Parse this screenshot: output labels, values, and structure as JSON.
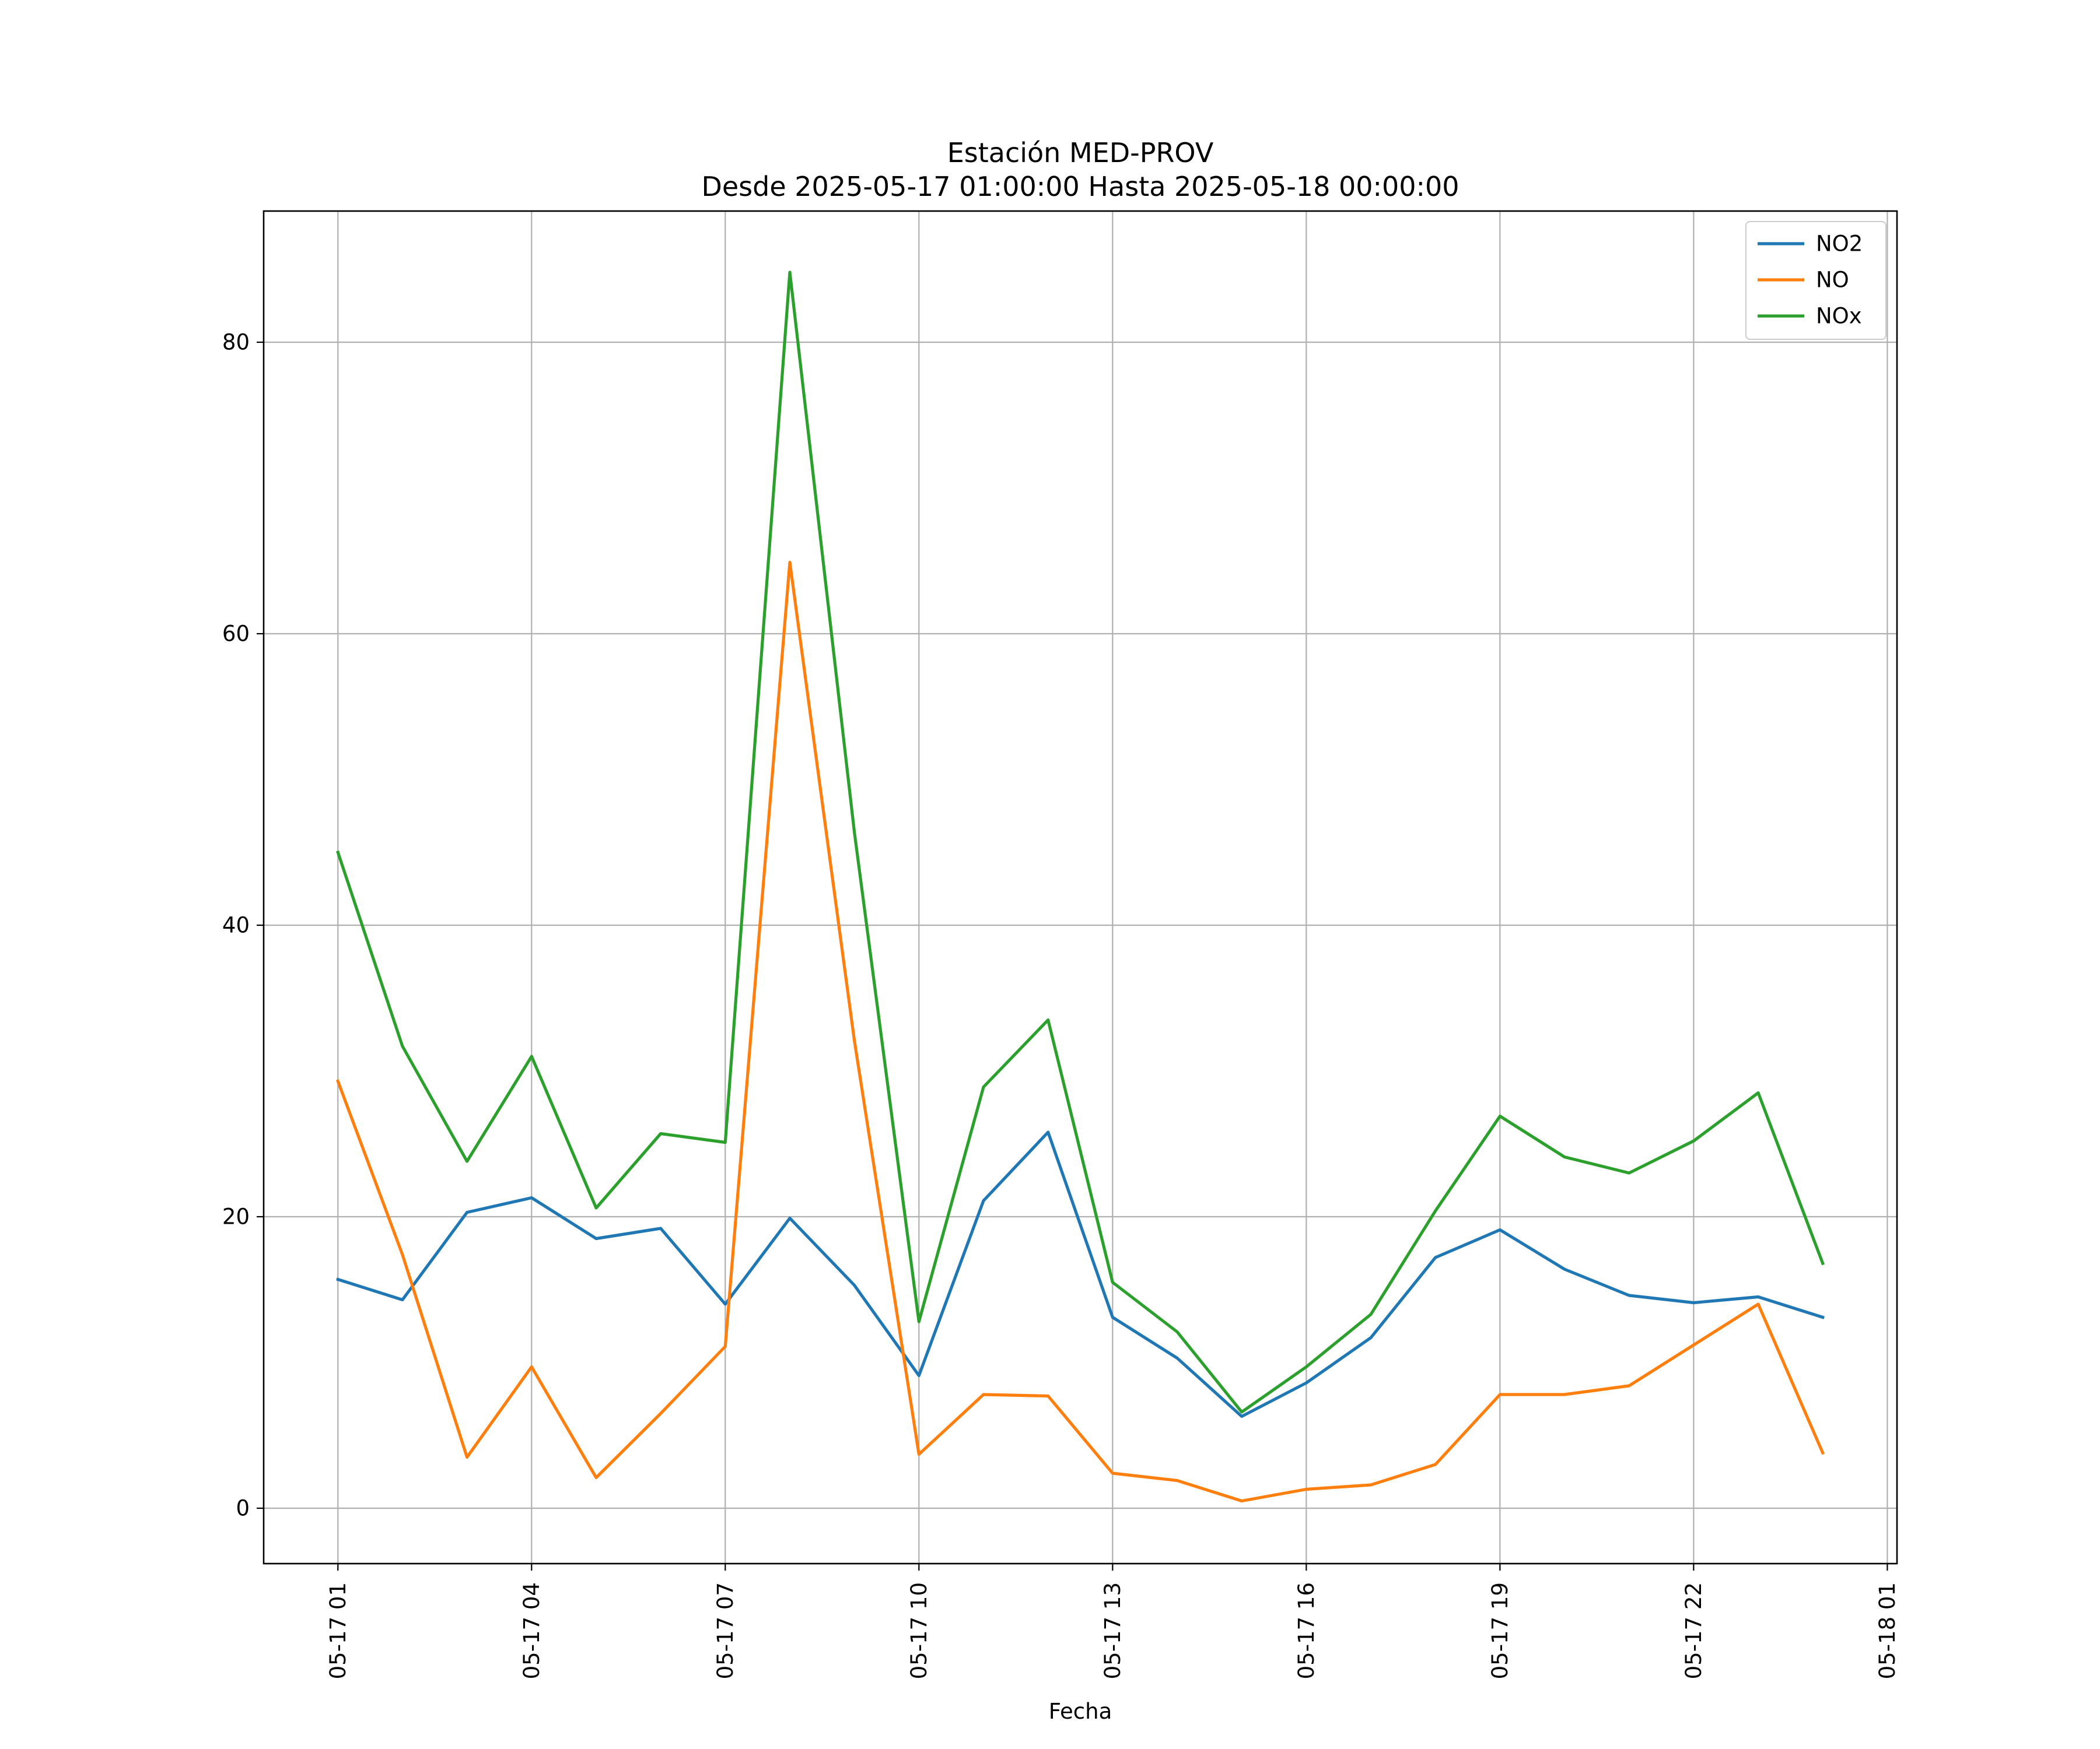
{
  "chart_data": {
    "type": "line",
    "title": "Estación MED-PROV",
    "subtitle": "Desde 2025-05-17 01:00:00 Hasta 2025-05-18 00:00:00",
    "xlabel": "Fecha",
    "ylabel": "",
    "x": [
      "2025-05-17 01:00",
      "2025-05-17 02:00",
      "2025-05-17 03:00",
      "2025-05-17 04:00",
      "2025-05-17 05:00",
      "2025-05-17 06:00",
      "2025-05-17 07:00",
      "2025-05-17 08:00",
      "2025-05-17 09:00",
      "2025-05-17 10:00",
      "2025-05-17 11:00",
      "2025-05-17 12:00",
      "2025-05-17 13:00",
      "2025-05-17 14:00",
      "2025-05-17 15:00",
      "2025-05-17 16:00",
      "2025-05-17 17:00",
      "2025-05-17 18:00",
      "2025-05-17 19:00",
      "2025-05-17 20:00",
      "2025-05-17 21:00",
      "2025-05-17 22:00",
      "2025-05-17 23:00",
      "2025-05-18 00:00"
    ],
    "x_ticks": [
      "05-17 01",
      "05-17 04",
      "05-17 07",
      "05-17 10",
      "05-17 13",
      "05-17 16",
      "05-17 19",
      "05-17 22",
      "05-18 01"
    ],
    "x_tick_values": [
      "2025-05-17 01:00",
      "2025-05-17 04:00",
      "2025-05-17 07:00",
      "2025-05-17 10:00",
      "2025-05-17 13:00",
      "2025-05-17 16:00",
      "2025-05-17 19:00",
      "2025-05-17 22:00",
      "2025-05-18 01:00"
    ],
    "xlim": [
      "2025-05-16 23:51",
      "2025-05-18 01:09"
    ],
    "y_ticks": [
      0,
      20,
      40,
      60,
      80
    ],
    "ylim": [
      -3.8,
      89
    ],
    "grid": true,
    "legend_position": "top-right",
    "series": [
      {
        "name": "NO2",
        "color": "#1f77b4",
        "values": [
          15.7,
          14.3,
          20.3,
          21.3,
          18.5,
          19.2,
          14.0,
          19.9,
          15.3,
          9.1,
          21.1,
          25.8,
          13.1,
          10.3,
          6.3,
          8.6,
          11.7,
          17.2,
          19.1,
          16.4,
          14.6,
          14.1,
          14.5,
          13.1
        ]
      },
      {
        "name": "NO",
        "color": "#ff7f0e",
        "values": [
          29.3,
          17.4,
          3.5,
          9.7,
          2.1,
          6.5,
          11.1,
          64.9,
          32.1,
          3.7,
          7.8,
          7.7,
          2.4,
          1.9,
          0.5,
          1.3,
          1.6,
          3.0,
          7.8,
          7.8,
          8.4,
          11.2,
          14.0,
          3.8
        ]
      },
      {
        "name": "NOx",
        "color": "#2ca02c",
        "values": [
          45.0,
          31.7,
          23.8,
          31.0,
          20.6,
          25.7,
          25.1,
          84.8,
          46.4,
          12.8,
          28.9,
          33.5,
          15.5,
          12.1,
          6.6,
          9.7,
          13.3,
          20.4,
          26.9,
          24.1,
          23.0,
          25.2,
          28.5,
          16.8
        ]
      }
    ]
  }
}
